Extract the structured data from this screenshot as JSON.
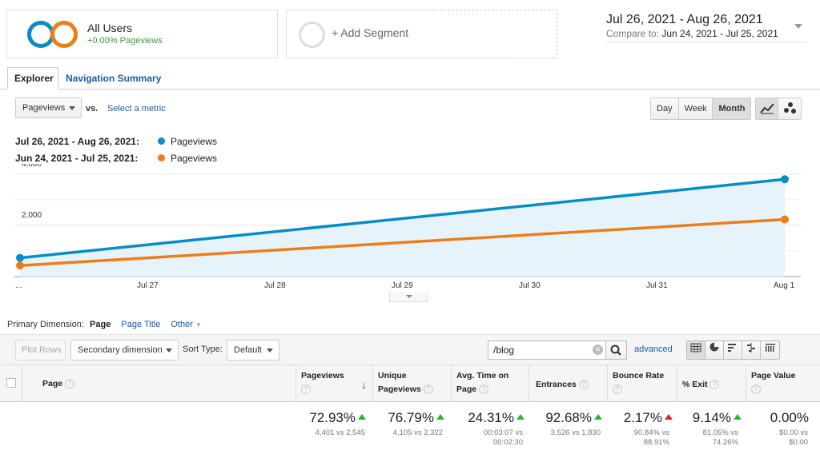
{
  "segments": {
    "primary_name": "All Users",
    "primary_sub": "+0.00% Pageviews",
    "add_label": "+ Add Segment"
  },
  "date_range": {
    "main": "Jul 26, 2021 - Aug 26, 2021",
    "compare_label": "Compare to:",
    "compare": "Jun 24, 2021 - Jul 25, 2021"
  },
  "tabs": [
    {
      "label": "Explorer",
      "active": true
    },
    {
      "label": "Navigation Summary",
      "active": false
    }
  ],
  "metric": {
    "selected": "Pageviews",
    "vs": "vs.",
    "select_link": "Select a metric"
  },
  "granularity": [
    "Day",
    "Week",
    "Month"
  ],
  "granularity_selected": "Month",
  "legend": [
    {
      "range": "Jul 26, 2021 - Aug 26, 2021:",
      "metric": "Pageviews",
      "color": "#058dc7"
    },
    {
      "range": "Jun 24, 2021 - Jul 25, 2021:",
      "metric": "Pageviews",
      "color": "#ed7e17"
    }
  ],
  "chart_data": {
    "type": "line",
    "x": [
      "...",
      "Jul 27",
      "Jul 28",
      "Jul 29",
      "Jul 30",
      "Jul 31",
      "Aug 1"
    ],
    "yticks": [
      2000,
      4000
    ],
    "ytick_labels": [
      "2,000",
      "4,000"
    ],
    "ylim": [
      0,
      4400
    ],
    "series": [
      {
        "name": "Pageviews",
        "color": "#058dc7",
        "points": [
          [
            "...",
            730
          ],
          [
            "Aug 1",
            3800
          ]
        ]
      },
      {
        "name": "Pageviews",
        "color": "#ed7e17",
        "points": [
          [
            "...",
            430
          ],
          [
            "Aug 1",
            2230
          ]
        ]
      }
    ],
    "grid": true,
    "legend_position": "top-left"
  },
  "primary_dimension": {
    "label": "Primary Dimension:",
    "current": "Page",
    "options": [
      "Page Title",
      "Other"
    ]
  },
  "toolbar": {
    "plot_rows": "Plot Rows",
    "secondary_dimension": "Secondary dimension",
    "sort_type_label": "Sort Type:",
    "sort_type_value": "Default",
    "search_value": "/blog",
    "advanced": "advanced"
  },
  "table": {
    "headers": {
      "page": "Page",
      "pageviews": "Pageviews",
      "unique_pageviews_1": "Unique",
      "unique_pageviews_2": "Pageviews",
      "avg_time_1": "Avg. Time on",
      "avg_time_2": "Page",
      "entrances": "Entrances",
      "bounce_rate": "Bounce Rate",
      "exit": "% Exit",
      "page_value": "Page Value"
    },
    "summary": {
      "pageviews": {
        "value": "72.93%",
        "sub": "4,401 vs 2,545",
        "trend": "up-good"
      },
      "unique_pageviews": {
        "value": "76.79%",
        "sub": "4,105 vs 2,322",
        "trend": "up-good"
      },
      "avg_time": {
        "value": "24.31%",
        "sub1": "00:03:07 vs",
        "sub2": "00:02:30",
        "trend": "up-good"
      },
      "entrances": {
        "value": "92.68%",
        "sub": "3,526 vs 1,830",
        "trend": "up-good"
      },
      "bounce_rate": {
        "value": "2.17%",
        "sub1": "90.84% vs",
        "sub2": "88.91%",
        "trend": "up-bad"
      },
      "exit": {
        "value": "9.14%",
        "sub1": "81.05% vs",
        "sub2": "74.26%",
        "trend": "up-good"
      },
      "page_value": {
        "value": "0.00%",
        "sub1": "$0.00 vs",
        "sub2": "$0.00"
      }
    }
  }
}
